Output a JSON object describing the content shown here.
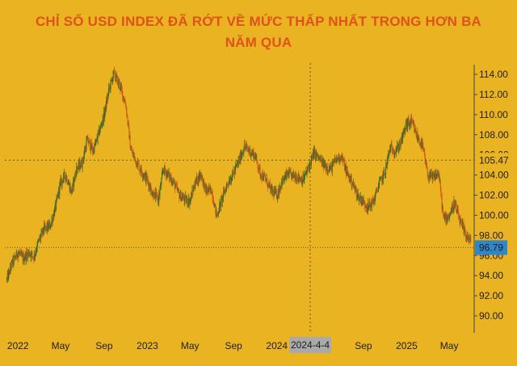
{
  "title_line1": "CHỈ SỐ USD INDEX ĐÃ RỚT VỀ MỨC THẤP NHẤT TRONG HƠN BA",
  "title_line2": "NĂM QUA",
  "colors": {
    "background": "#e9b322",
    "title": "#e0521b",
    "candle_up": "#2f6b2a",
    "candle_down": "#d2571c",
    "current_price_label": "#2f86c9",
    "reference_label": "#e9b322",
    "crosshair_label": "#aaaaaa"
  },
  "chart_data": {
    "type": "line",
    "title": "CHỈ SỐ USD INDEX ĐÃ RỚT VỀ MỨC THẤP NHẤT TRONG HƠN BA NĂM QUA",
    "xlabel": "",
    "ylabel": "",
    "x_ticks": [
      "2022",
      "May",
      "Sep",
      "2023",
      "May",
      "Sep",
      "2024",
      "Sep",
      "2025",
      "May"
    ],
    "y_ticks": [
      "114.00",
      "112.00",
      "110.00",
      "108.00",
      "106.00",
      "104.00",
      "102.00",
      "100.00",
      "98.00",
      "96.00",
      "94.00",
      "92.00",
      "90.00"
    ],
    "ylim": [
      88.5,
      115.5
    ],
    "grid": false,
    "reference_line": {
      "value": 105.47,
      "label": "105.47"
    },
    "current_price": {
      "value": 96.79,
      "label": "96.79"
    },
    "crosshair_date_label": "2024-4-4",
    "series": [
      {
        "x": [
          "2021-12-01",
          "2021-12-15",
          "2022-01-01",
          "2022-01-15",
          "2022-02-01",
          "2022-02-15",
          "2022-03-01",
          "2022-03-15",
          "2022-04-01",
          "2022-04-15",
          "2022-05-01",
          "2022-05-15",
          "2022-06-01",
          "2022-06-15",
          "2022-07-01",
          "2022-07-15",
          "2022-08-01",
          "2022-08-15",
          "2022-09-01",
          "2022-09-15",
          "2022-09-28",
          "2022-10-15",
          "2022-11-01",
          "2022-11-15",
          "2022-12-01",
          "2022-12-15",
          "2023-01-01",
          "2023-01-15",
          "2023-02-01",
          "2023-02-15",
          "2023-03-01",
          "2023-03-15",
          "2023-04-01",
          "2023-04-15",
          "2023-05-01",
          "2023-05-15",
          "2023-06-01",
          "2023-06-15",
          "2023-07-01",
          "2023-07-15",
          "2023-08-01",
          "2023-08-15",
          "2023-09-01",
          "2023-09-15",
          "2023-10-01",
          "2023-10-15",
          "2023-11-01",
          "2023-11-15",
          "2023-12-01",
          "2023-12-15",
          "2024-01-01",
          "2024-01-15",
          "2024-02-01",
          "2024-02-15",
          "2024-03-01",
          "2024-03-15",
          "2024-04-01",
          "2024-04-15",
          "2024-05-01",
          "2024-05-15",
          "2024-06-01",
          "2024-06-15",
          "2024-07-01",
          "2024-07-15",
          "2024-08-01",
          "2024-08-15",
          "2024-09-01",
          "2024-09-15",
          "2024-10-01",
          "2024-10-15",
          "2024-11-01",
          "2024-11-15",
          "2024-12-01",
          "2024-12-15",
          "2025-01-01",
          "2025-01-15",
          "2025-02-01",
          "2025-02-15",
          "2025-03-01",
          "2025-03-15",
          "2025-04-01",
          "2025-04-15",
          "2025-05-01",
          "2025-05-15",
          "2025-06-01",
          "2025-06-15",
          "2025-07-01"
        ],
        "values": [
          93.6,
          95.2,
          96.3,
          95.7,
          96.3,
          95.9,
          97.5,
          98.6,
          98.9,
          100.5,
          103.2,
          104.0,
          102.3,
          104.6,
          105.2,
          107.5,
          106.4,
          107.9,
          110.0,
          112.5,
          114.1,
          112.9,
          111.0,
          106.5,
          105.3,
          104.4,
          103.5,
          102.2,
          101.6,
          104.6,
          104.0,
          103.3,
          102.0,
          101.6,
          101.4,
          103.2,
          104.1,
          102.4,
          102.5,
          99.9,
          101.8,
          103.2,
          104.2,
          105.3,
          106.8,
          106.4,
          105.9,
          104.2,
          103.5,
          102.5,
          102.0,
          103.3,
          104.1,
          103.9,
          103.8,
          103.5,
          104.9,
          106.2,
          105.5,
          104.9,
          104.6,
          105.5,
          105.9,
          104.3,
          103.2,
          102.0,
          101.3,
          100.8,
          101.5,
          103.1,
          104.3,
          106.7,
          106.4,
          107.2,
          109.1,
          109.2,
          107.7,
          106.8,
          104.0,
          103.7,
          104.2,
          99.6,
          100.0,
          101.2,
          99.3,
          98.2,
          97.3
        ]
      }
    ]
  }
}
